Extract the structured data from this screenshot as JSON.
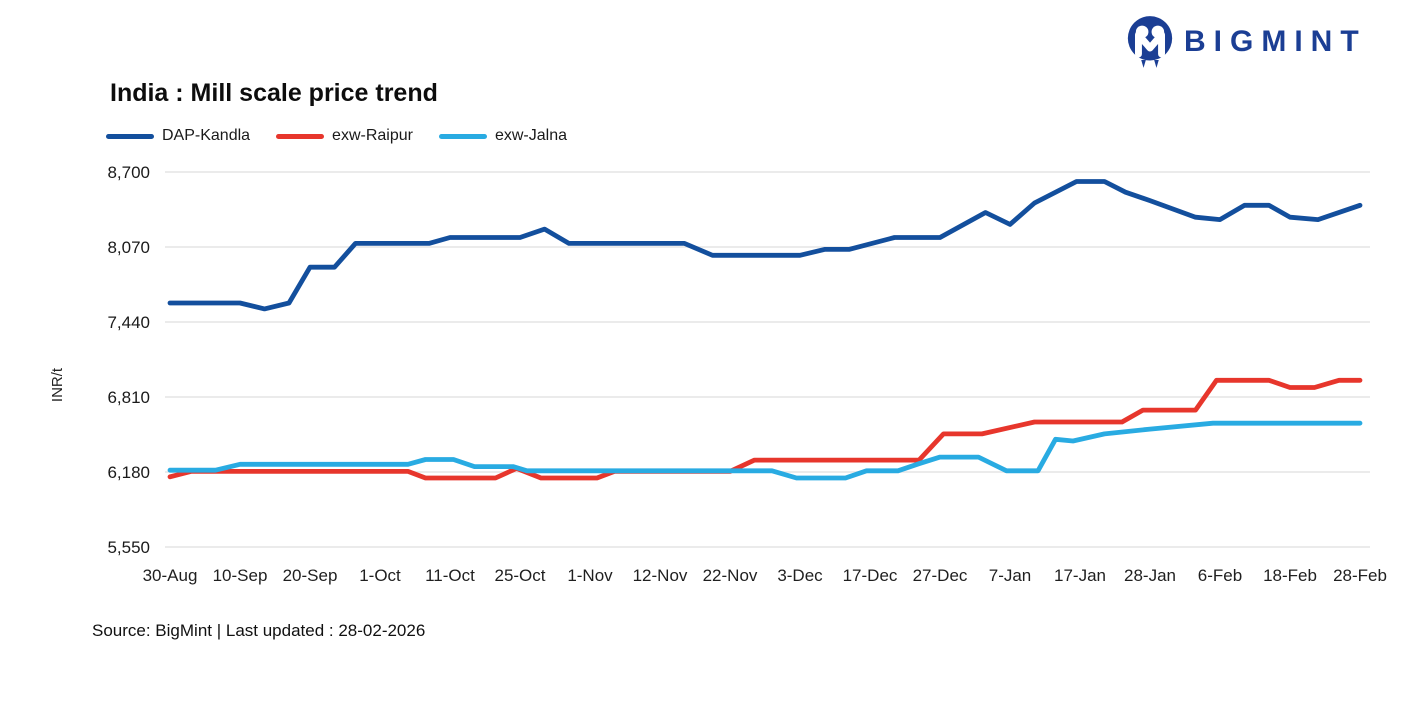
{
  "brand": {
    "name": "BIGMINT",
    "color": "#1b3e94"
  },
  "source_note": "Source: BigMint | Last updated : 28-02-2026",
  "chart_data": {
    "type": "line",
    "title": "India : Mill scale price trend",
    "xlabel": "",
    "ylabel": "INR/t",
    "grid": true,
    "legend_position": "top-left",
    "ylim": [
      5550,
      8700
    ],
    "y_ticks": [
      8700,
      8070,
      7440,
      6810,
      6180,
      5550
    ],
    "y_tick_labels": [
      "8,700",
      "8,070",
      "7,440",
      "6,810",
      "6,180",
      "5,550"
    ],
    "x_tick_labels": [
      "30-Aug",
      "10-Sep",
      "20-Sep",
      "1-Oct",
      "11-Oct",
      "25-Oct",
      "1-Nov",
      "12-Nov",
      "22-Nov",
      "3-Dec",
      "17-Dec",
      "27-Dec",
      "7-Jan",
      "17-Jan",
      "28-Jan",
      "6-Feb",
      "18-Feb",
      "28-Feb"
    ],
    "x_axis_note": "x values of points are in label-index units (0 = 30-Aug, 17 = 28-Feb)",
    "series": [
      {
        "name": "DAP-Kandla",
        "color": "#134f9d",
        "points": [
          [
            0,
            7600
          ],
          [
            1.0,
            7600
          ],
          [
            1.35,
            7550
          ],
          [
            1.7,
            7600
          ],
          [
            2.0,
            7900
          ],
          [
            2.35,
            7900
          ],
          [
            2.65,
            8100
          ],
          [
            3.7,
            8100
          ],
          [
            4.0,
            8150
          ],
          [
            5.0,
            8150
          ],
          [
            5.35,
            8220
          ],
          [
            5.7,
            8100
          ],
          [
            7.35,
            8100
          ],
          [
            7.75,
            8000
          ],
          [
            9.0,
            8000
          ],
          [
            9.35,
            8050
          ],
          [
            9.7,
            8050
          ],
          [
            10.35,
            8150
          ],
          [
            11.0,
            8150
          ],
          [
            11.65,
            8360
          ],
          [
            12.0,
            8260
          ],
          [
            12.35,
            8440
          ],
          [
            12.95,
            8620
          ],
          [
            13.35,
            8620
          ],
          [
            13.65,
            8530
          ],
          [
            14.0,
            8460
          ],
          [
            14.65,
            8320
          ],
          [
            15.0,
            8300
          ],
          [
            15.35,
            8420
          ],
          [
            15.7,
            8420
          ],
          [
            16.0,
            8320
          ],
          [
            16.4,
            8300
          ],
          [
            17.0,
            8420
          ]
        ]
      },
      {
        "name": "exw-Raipur",
        "color": "#e7362c",
        "points": [
          [
            0,
            6140
          ],
          [
            0.3,
            6185
          ],
          [
            3.4,
            6185
          ],
          [
            3.65,
            6130
          ],
          [
            4.65,
            6130
          ],
          [
            4.95,
            6210
          ],
          [
            5.3,
            6130
          ],
          [
            6.1,
            6130
          ],
          [
            6.35,
            6185
          ],
          [
            8.0,
            6185
          ],
          [
            8.35,
            6280
          ],
          [
            10.7,
            6280
          ],
          [
            11.05,
            6500
          ],
          [
            11.6,
            6500
          ],
          [
            12.35,
            6600
          ],
          [
            13.6,
            6600
          ],
          [
            13.9,
            6700
          ],
          [
            14.65,
            6700
          ],
          [
            14.95,
            6950
          ],
          [
            15.7,
            6950
          ],
          [
            16.0,
            6890
          ],
          [
            16.35,
            6890
          ],
          [
            16.7,
            6950
          ],
          [
            17.0,
            6950
          ]
        ]
      },
      {
        "name": "exw-Jalna",
        "color": "#29abe2",
        "points": [
          [
            0,
            6195
          ],
          [
            0.65,
            6195
          ],
          [
            1.0,
            6245
          ],
          [
            3.4,
            6245
          ],
          [
            3.65,
            6285
          ],
          [
            4.05,
            6285
          ],
          [
            4.35,
            6225
          ],
          [
            4.9,
            6225
          ],
          [
            5.1,
            6190
          ],
          [
            8.6,
            6190
          ],
          [
            8.95,
            6130
          ],
          [
            9.65,
            6130
          ],
          [
            9.95,
            6190
          ],
          [
            10.4,
            6190
          ],
          [
            10.7,
            6250
          ],
          [
            11.0,
            6305
          ],
          [
            11.55,
            6305
          ],
          [
            11.95,
            6190
          ],
          [
            12.4,
            6190
          ],
          [
            12.65,
            6455
          ],
          [
            12.9,
            6440
          ],
          [
            13.35,
            6500
          ],
          [
            14.0,
            6540
          ],
          [
            14.9,
            6590
          ],
          [
            17.0,
            6590
          ]
        ]
      }
    ]
  }
}
